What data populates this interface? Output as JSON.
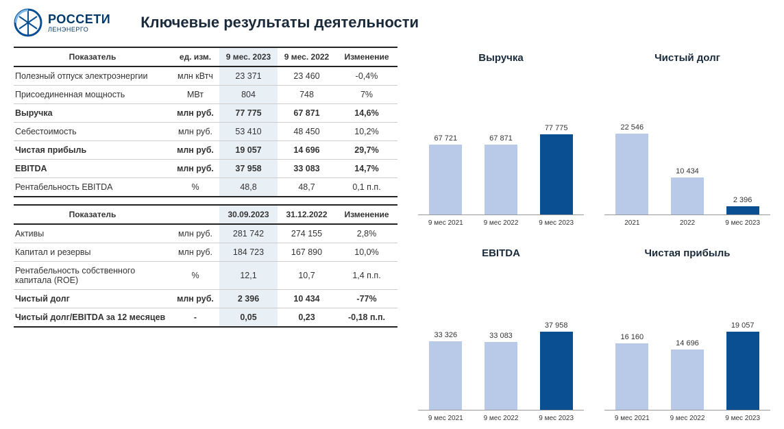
{
  "brand": {
    "main": "РОССЕТИ",
    "sub": "ЛЕНЭНЕРГО"
  },
  "title": "Ключевые результаты деятельности",
  "colors": {
    "bar_light": "#b9c9e8",
    "bar_dark": "#0a4f92",
    "highlight_bg": "#e8f0f6",
    "logo": "#0a4f92"
  },
  "table1": {
    "headers": [
      "Показатель",
      "ед. изм.",
      "9 мес. 2023",
      "9 мес. 2022",
      "Изменение"
    ],
    "rows": [
      {
        "label": "Полезный отпуск электроэнергии",
        "unit": "млн кВтч",
        "v1": "23 371",
        "v2": "23 460",
        "chg": "-0,4%",
        "bold": false
      },
      {
        "label": "Присоединенная мощность",
        "unit": "МВт",
        "v1": "804",
        "v2": "748",
        "chg": "7%",
        "bold": false
      },
      {
        "label": "Выручка",
        "unit": "млн руб.",
        "v1": "77 775",
        "v2": "67 871",
        "chg": "14,6%",
        "bold": true
      },
      {
        "label": "Себестоимость",
        "unit": "млн руб.",
        "v1": "53 410",
        "v2": "48 450",
        "chg": "10,2%",
        "bold": false
      },
      {
        "label": "Чистая прибыль",
        "unit": "млн руб.",
        "v1": "19 057",
        "v2": "14 696",
        "chg": "29,7%",
        "bold": true
      },
      {
        "label": "EBITDA",
        "unit": "млн руб.",
        "v1": "37 958",
        "v2": "33 083",
        "chg": "14,7%",
        "bold": true
      },
      {
        "label": "Рентабельность EBITDA",
        "unit": "%",
        "v1": "48,8",
        "v2": "48,7",
        "chg": "0,1 п.п.",
        "bold": false
      }
    ]
  },
  "table2": {
    "headers": [
      "Показатель",
      "",
      "30.09.2023",
      "31.12.2022",
      "Изменение"
    ],
    "rows": [
      {
        "label": "Активы",
        "unit": "млн руб.",
        "v1": "281 742",
        "v2": "274 155",
        "chg": "2,8%",
        "bold": false
      },
      {
        "label": "Капитал и резервы",
        "unit": "млн руб.",
        "v1": "184 723",
        "v2": "167 890",
        "chg": "10,0%",
        "bold": false
      },
      {
        "label": "Рентабельность собственного капитала (ROE)",
        "unit": "%",
        "v1": "12,1",
        "v2": "10,7",
        "chg": "1,4 п.п.",
        "bold": false
      },
      {
        "label": "Чистый долг",
        "unit": "млн руб.",
        "v1": "2 396",
        "v2": "10 434",
        "chg": "-77%",
        "bold": true
      },
      {
        "label": "Чистый долг/EBITDA за 12 месяцев",
        "unit": "-",
        "v1": "0,05",
        "v2": "0,23",
        "chg": "-0,18 п.п.",
        "bold": true
      }
    ]
  },
  "charts": [
    {
      "title": "Выручка",
      "max": 80000,
      "bars": [
        {
          "label": "9 мес 2021",
          "value": 67721,
          "display": "67 721",
          "color": "#b9c9e8"
        },
        {
          "label": "9 мес 2022",
          "value": 67871,
          "display": "67 871",
          "color": "#b9c9e8"
        },
        {
          "label": "9 мес 2023",
          "value": 77775,
          "display": "77 775",
          "color": "#0a4f92"
        }
      ]
    },
    {
      "title": "Чистый долг",
      "max": 23000,
      "bars": [
        {
          "label": "2021",
          "value": 22546,
          "display": "22 546",
          "color": "#b9c9e8"
        },
        {
          "label": "2022",
          "value": 10434,
          "display": "10 434",
          "color": "#b9c9e8"
        },
        {
          "label": "9 мес 2023",
          "value": 2396,
          "display": "2 396",
          "color": "#0a4f92"
        }
      ]
    },
    {
      "title": "EBITDA",
      "max": 40000,
      "bars": [
        {
          "label": "9 мес 2021",
          "value": 33326,
          "display": "33 326",
          "color": "#b9c9e8"
        },
        {
          "label": "9 мес 2022",
          "value": 33083,
          "display": "33 083",
          "color": "#b9c9e8"
        },
        {
          "label": "9 мес 2023",
          "value": 37958,
          "display": "37 958",
          "color": "#0a4f92"
        }
      ]
    },
    {
      "title": "Чистая прибыль",
      "max": 20000,
      "bars": [
        {
          "label": "9 мес 2021",
          "value": 16160,
          "display": "16 160",
          "color": "#b9c9e8"
        },
        {
          "label": "9 мес 2022",
          "value": 14696,
          "display": "14 696",
          "color": "#b9c9e8"
        },
        {
          "label": "9 мес 2023",
          "value": 19057,
          "display": "19 057",
          "color": "#0a4f92"
        }
      ]
    }
  ]
}
